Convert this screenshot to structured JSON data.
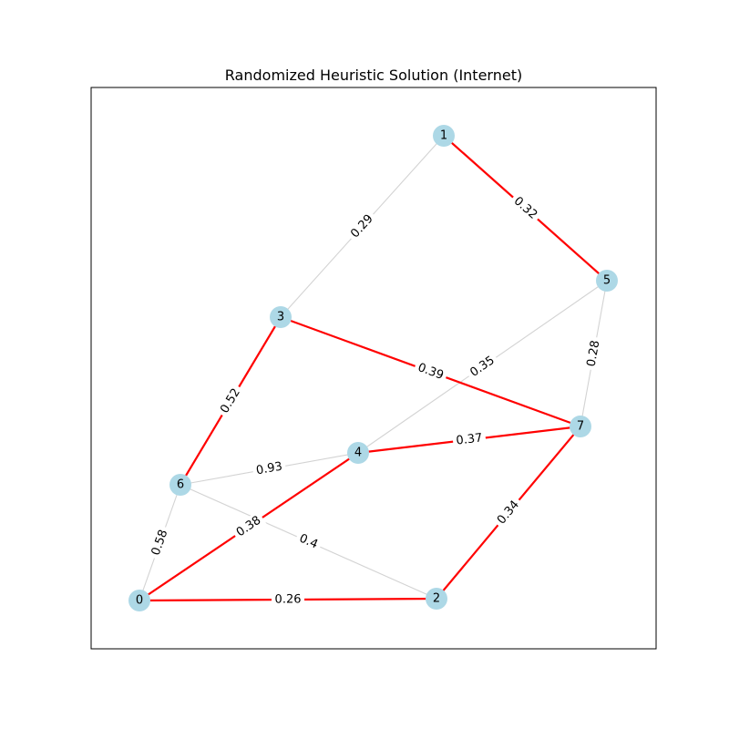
{
  "figure": {
    "title": "Randomized Heuristic Solution (Internet)"
  },
  "colors": {
    "node_fill": "#add8e6",
    "edge_selected": "#ff0000",
    "edge_other": "#d3d3d3",
    "label_bg": "#ffffff",
    "frame": "#000000"
  },
  "graph": {
    "nodes": [
      {
        "id": "0",
        "label": "0"
      },
      {
        "id": "1",
        "label": "1"
      },
      {
        "id": "2",
        "label": "2"
      },
      {
        "id": "3",
        "label": "3"
      },
      {
        "id": "4",
        "label": "4"
      },
      {
        "id": "5",
        "label": "5"
      },
      {
        "id": "6",
        "label": "6"
      },
      {
        "id": "7",
        "label": "7"
      }
    ],
    "edges": [
      {
        "source": "1",
        "target": "3",
        "weight": "0.29",
        "selected": false
      },
      {
        "source": "5",
        "target": "4",
        "weight": "0.35",
        "selected": false
      },
      {
        "source": "5",
        "target": "7",
        "weight": "0.28",
        "selected": false
      },
      {
        "source": "6",
        "target": "4",
        "weight": "0.93",
        "selected": false
      },
      {
        "source": "6",
        "target": "2",
        "weight": "0.4",
        "selected": false
      },
      {
        "source": "6",
        "target": "0",
        "weight": "0.58",
        "selected": false
      },
      {
        "source": "1",
        "target": "5",
        "weight": "0.32",
        "selected": true
      },
      {
        "source": "3",
        "target": "7",
        "weight": "0.39",
        "selected": true
      },
      {
        "source": "3",
        "target": "6",
        "weight": "0.52",
        "selected": true
      },
      {
        "source": "4",
        "target": "7",
        "weight": "0.37",
        "selected": true
      },
      {
        "source": "0",
        "target": "4",
        "weight": "0.38",
        "selected": true
      },
      {
        "source": "0",
        "target": "2",
        "weight": "0.26",
        "selected": true
      },
      {
        "source": "7",
        "target": "2",
        "weight": "0.34",
        "selected": true
      }
    ]
  }
}
